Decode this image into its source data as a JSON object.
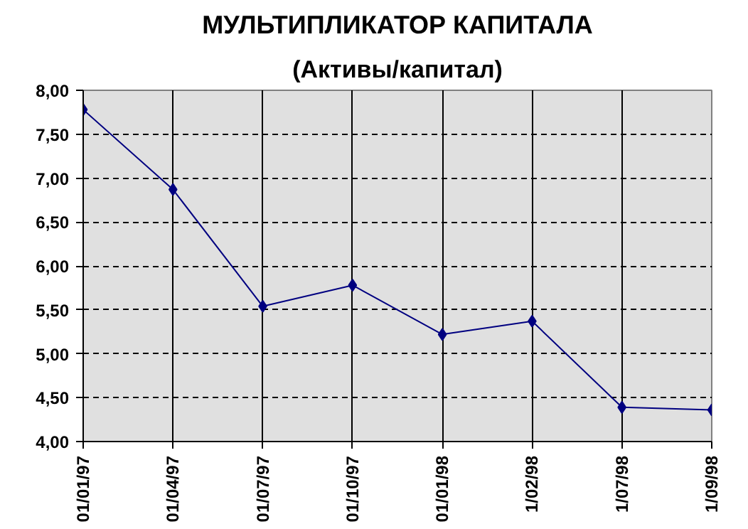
{
  "chart_data": {
    "type": "line",
    "title": "МУЛЬТИПЛИКАТОР КАПИТАЛА",
    "subtitle": "(Активы/капитал)",
    "categories": [
      "01/01/97",
      "01/04/97",
      "01/07/97",
      "01/10/97",
      "01/01/98",
      "1/02/98",
      "1/07/98",
      "1/09/98"
    ],
    "series": [
      {
        "color": "#000080",
        "values": [
          7.78,
          6.87,
          5.54,
          5.78,
          5.22,
          5.37,
          4.39,
          4.36
        ]
      }
    ],
    "ylim": [
      4,
      8
    ],
    "yticks": [
      {
        "value": 4,
        "label": "4,00"
      },
      {
        "value": 4.5,
        "label": "4,50"
      },
      {
        "value": 5,
        "label": "5,00"
      },
      {
        "value": 5.5,
        "label": "5,50"
      },
      {
        "value": 6,
        "label": "6,00"
      },
      {
        "value": 6.5,
        "label": "6,50"
      },
      {
        "value": 7,
        "label": "7,00"
      },
      {
        "value": 7.5,
        "label": "7,50"
      },
      {
        "value": 8,
        "label": "8,00"
      }
    ],
    "grid": true,
    "marker": "diamond",
    "line_style": "solid"
  }
}
